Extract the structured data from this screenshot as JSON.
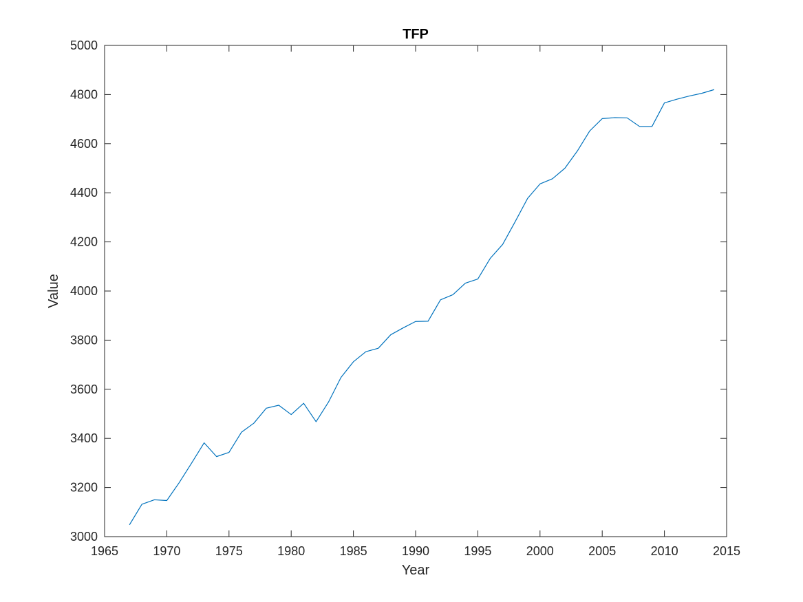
{
  "chart_data": {
    "type": "line",
    "title": "TFP",
    "xlabel": "Year",
    "ylabel": "Value",
    "xlim": [
      1965,
      2015
    ],
    "ylim": [
      3000,
      5000
    ],
    "xticks": [
      1965,
      1970,
      1975,
      1980,
      1985,
      1990,
      1995,
      2000,
      2005,
      2010,
      2015
    ],
    "yticks": [
      3000,
      3200,
      3400,
      3600,
      3800,
      4000,
      4200,
      4400,
      4600,
      4800,
      5000
    ],
    "grid": false,
    "line_color": "#0072BD",
    "x": [
      1967,
      1968,
      1969,
      1970,
      1971,
      1972,
      1973,
      1974,
      1975,
      1976,
      1977,
      1978,
      1979,
      1980,
      1981,
      1982,
      1983,
      1984,
      1985,
      1986,
      1987,
      1988,
      1989,
      1990,
      1991,
      1992,
      1993,
      1994,
      1995,
      1996,
      1997,
      1998,
      1999,
      2000,
      2001,
      2002,
      2003,
      2004,
      2005,
      2006,
      2007,
      2008,
      2009,
      2010,
      2011,
      2012,
      2013,
      2014
    ],
    "y": [
      3048,
      3132,
      3150,
      3147,
      3220,
      3300,
      3382,
      3326,
      3343,
      3425,
      3462,
      3523,
      3535,
      3497,
      3543,
      3468,
      3548,
      3648,
      3712,
      3753,
      3767,
      3822,
      3850,
      3876,
      3877,
      3964,
      3985,
      4032,
      4049,
      4133,
      4190,
      4282,
      4377,
      4436,
      4457,
      4500,
      4570,
      4652,
      4702,
      4706,
      4705,
      4670,
      4670,
      4766,
      4781,
      4794,
      4805,
      4820
    ]
  }
}
